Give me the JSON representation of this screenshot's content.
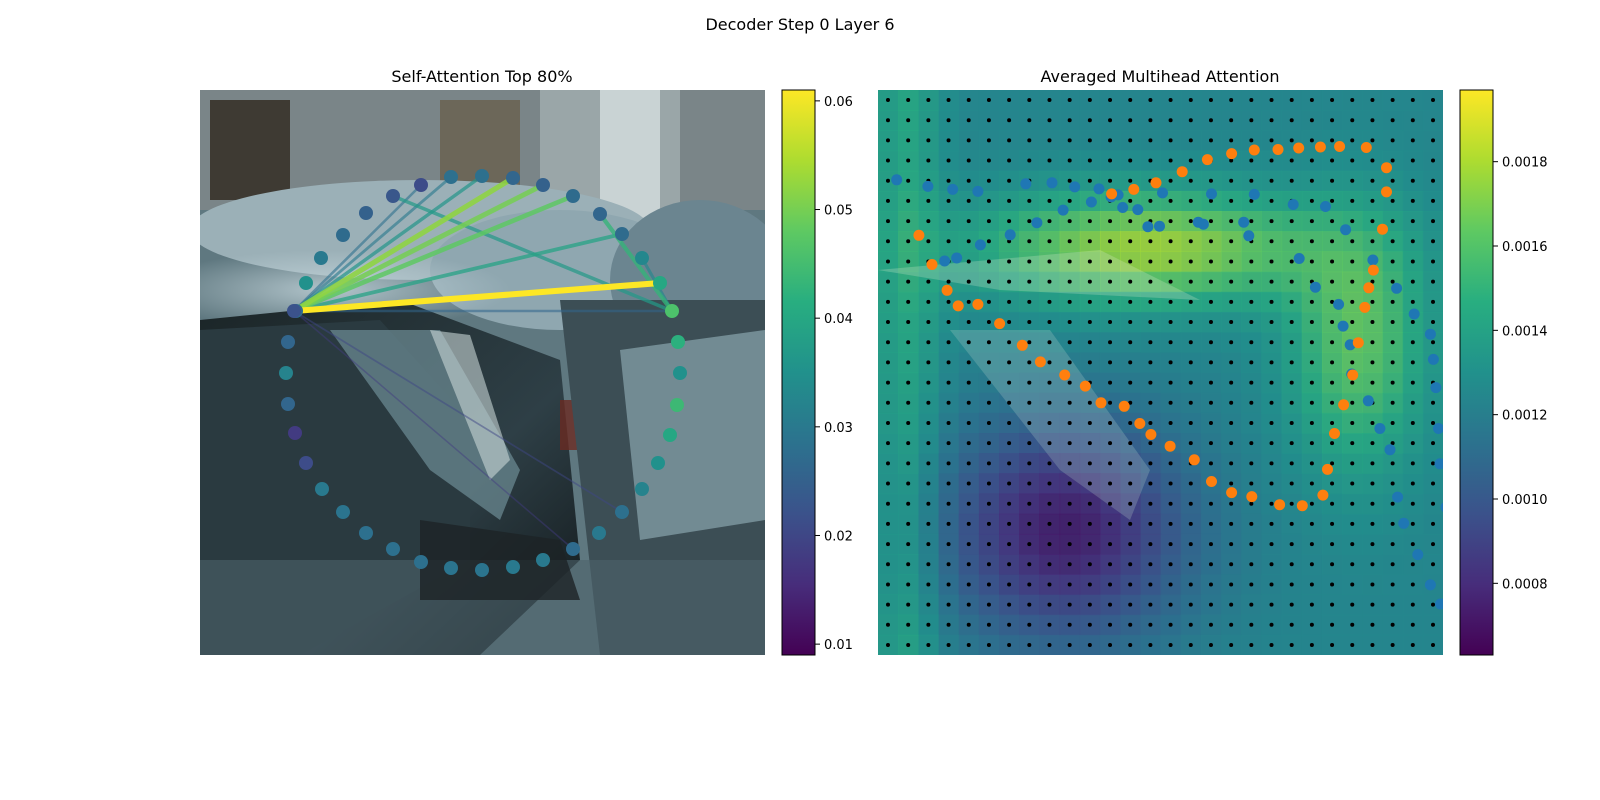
{
  "figure": {
    "suptitle": "Decoder Step 0 Layer 6"
  },
  "chart_data": [
    {
      "type": "scatter",
      "title": "Self-Attention Top 80%",
      "description_of_background": "blurred street photo of parked cars",
      "colormap": "viridis",
      "colorbar": {
        "min": 0.009,
        "max": 0.061,
        "ticks": [
          0.01,
          0.02,
          0.03,
          0.04,
          0.05,
          0.06
        ]
      },
      "points": [
        {
          "x": 3,
          "y": 5,
          "v": 0.035
        },
        {
          "x": 5.5,
          "y": 5.8,
          "v": 0.03
        },
        {
          "x": 9,
          "y": 6.5,
          "v": 0.027
        },
        {
          "x": 12.5,
          "y": 6,
          "v": 0.025
        },
        {
          "x": 15.5,
          "y": 4.8,
          "v": 0.023
        },
        {
          "x": 19,
          "y": 3.5,
          "v": 0.021
        },
        {
          "x": 24.5,
          "y": 2.3,
          "v": 0.028
        },
        {
          "x": 30,
          "y": 2,
          "v": 0.028
        },
        {
          "x": 35,
          "y": 1.8,
          "v": 0.026
        },
        {
          "x": 40,
          "y": 2,
          "v": 0.025
        },
        {
          "x": 45.5,
          "y": 2.3,
          "v": 0.027
        },
        {
          "x": 51.5,
          "y": 3,
          "v": 0.026
        },
        {
          "x": 57.5,
          "y": 3.2,
          "v": 0.027
        },
        {
          "x": 63.5,
          "y": 3.5,
          "v": 0.033
        },
        {
          "x": 68,
          "y": 4.5,
          "v": 0.04
        },
        {
          "x": 73,
          "y": 5,
          "v": 0.046
        },
        {
          "x": 78.5,
          "y": 6.2,
          "v": 0.042
        },
        {
          "x": 81.5,
          "y": 8.8,
          "v": 0.035
        },
        {
          "x": 83.5,
          "y": 11.8,
          "v": 0.044
        },
        {
          "x": 84.5,
          "y": 15.3,
          "v": 0.04
        },
        {
          "x": 84.5,
          "y": 18.5,
          "v": 0.035
        },
        {
          "x": 84,
          "y": 22,
          "v": 0.032
        },
        {
          "x": 83,
          "y": 25.3,
          "v": 0.028
        },
        {
          "x": 81.5,
          "y": 29,
          "v": 0.03
        },
        {
          "x": 78.5,
          "y": 32.8,
          "v": 0.027
        },
        {
          "x": 74.5,
          "y": 36,
          "v": 0.03
        },
        {
          "x": 71,
          "y": 39,
          "v": 0.03
        },
        {
          "x": 67,
          "y": 41.5,
          "v": 0.029
        },
        {
          "x": 62,
          "y": 43.3,
          "v": 0.029
        },
        {
          "x": 56.5,
          "y": 44,
          "v": 0.028
        },
        {
          "x": 51,
          "y": 44.3,
          "v": 0.028
        },
        {
          "x": 45.5,
          "y": 43.7,
          "v": 0.028
        },
        {
          "x": 39.5,
          "y": 42.8,
          "v": 0.029
        },
        {
          "x": 34.5,
          "y": 40.5,
          "v": 0.03
        },
        {
          "x": 29,
          "y": 37.5,
          "v": 0.021
        },
        {
          "x": 25,
          "y": 33.5,
          "v": 0.018
        },
        {
          "x": 21.5,
          "y": 31.5,
          "v": 0.026
        },
        {
          "x": 16.5,
          "y": 29.8,
          "v": 0.032
        },
        {
          "x": 14,
          "y": 28.5,
          "v": 0.026
        },
        {
          "x": 11.5,
          "y": 27.5,
          "v": 0.027
        },
        {
          "x": 8.5,
          "y": 26,
          "v": 0.022
        }
      ],
      "edges": [
        {
          "from": 40,
          "to": 6,
          "v": 0.03
        },
        {
          "from": 40,
          "to": 7,
          "v": 0.036
        },
        {
          "from": 40,
          "to": 8,
          "v": 0.052
        },
        {
          "from": 40,
          "to": 9,
          "v": 0.05
        },
        {
          "from": 40,
          "to": 10,
          "v": 0.048
        },
        {
          "from": 40,
          "to": 12,
          "v": 0.039
        },
        {
          "from": 40,
          "to": 14,
          "v": 0.061
        },
        {
          "from": 40,
          "to": 15,
          "v": 0.026
        },
        {
          "from": 40,
          "to": 5,
          "v": 0.028
        },
        {
          "from": 4,
          "to": 15,
          "v": 0.037
        },
        {
          "from": 11,
          "to": 15,
          "v": 0.043
        },
        {
          "from": 13,
          "to": 15,
          "v": 0.033
        },
        {
          "from": 40,
          "to": 22,
          "v": 0.02
        },
        {
          "from": 40,
          "to": 24,
          "v": 0.018
        }
      ]
    },
    {
      "type": "heatmap",
      "title": "Averaged Multihead Attention",
      "description_of_background": "attention heatmap overlaid on the same street photo with sampling grid and contour points",
      "colormap": "viridis",
      "colorbar": {
        "min": 0.00063,
        "max": 0.00197,
        "ticks": [
          0.0008,
          0.001,
          0.0012,
          0.0014,
          0.0016,
          0.0018
        ]
      },
      "grid": {
        "rows": 28,
        "cols": 28
      },
      "series": [
        {
          "color": "#1f77b4",
          "points": [
            [
              19.8,
              20.1
            ],
            [
              14.8,
              19.7
            ],
            [
              9.9,
              19.1
            ],
            [
              3.7,
              17.8
            ],
            [
              29.3,
              18.6
            ],
            [
              34.5,
              18.4
            ],
            [
              39,
              19.2
            ],
            [
              43.8,
              19.6
            ],
            [
              46.2,
              21.2
            ],
            [
              48.5,
              23.3
            ],
            [
              51.5,
              23.7
            ],
            [
              53.5,
              27.1
            ],
            [
              55.8,
              27
            ],
            [
              63.5,
              26.2
            ],
            [
              64.5,
              26.6
            ],
            [
              72.5,
              26.2
            ],
            [
              73.5,
              28.9
            ],
            [
              83.5,
              33.4
            ],
            [
              86.7,
              39.1
            ],
            [
              91.3,
              42.5
            ],
            [
              92.2,
              46.8
            ],
            [
              93.6,
              50.5
            ],
            [
              93.9,
              56.3
            ],
            [
              97.2,
              61.6
            ],
            [
              99.5,
              67.1
            ],
            [
              101.5,
              71.3
            ],
            [
              103,
              80.7
            ],
            [
              104.2,
              85.9
            ],
            [
              107,
              92.1
            ],
            [
              109.5,
              98.1
            ],
            [
              111.5,
              101.9
            ],
            [
              113.8,
              102.1
            ],
            [
              113.9,
              87.9
            ],
            [
              112.6,
              82.7
            ],
            [
              111.4,
              74.1
            ],
            [
              111.1,
              67.1
            ],
            [
              110.6,
              59
            ],
            [
              110.1,
              53.4
            ],
            [
              109.5,
              48.4
            ],
            [
              106.3,
              44.4
            ],
            [
              102.8,
              39.3
            ],
            [
              98.1,
              33.7
            ],
            [
              92.7,
              27.7
            ],
            [
              88.7,
              23.1
            ],
            [
              82.3,
              22.7
            ],
            [
              74.6,
              20.7
            ],
            [
              66.1,
              20.6
            ],
            [
              56.4,
              20.4
            ],
            [
              47.6,
              20.8
            ],
            [
              42.3,
              22.2
            ],
            [
              36.7,
              23.8
            ],
            [
              31.5,
              26.3
            ],
            [
              26.2,
              28.7
            ],
            [
              20.3,
              30.7
            ],
            [
              15.6,
              33.3
            ],
            [
              13.2,
              33.9
            ]
          ]
        },
        {
          "color": "#ff7f0e",
          "points": [
            [
              8.1,
              28.8
            ],
            [
              10.7,
              34.6
            ],
            [
              13.7,
              39.7
            ],
            [
              15.9,
              42.8
            ],
            [
              19.8,
              42.5
            ],
            [
              24.1,
              46.3
            ],
            [
              28.6,
              50.6
            ],
            [
              32.2,
              53.9
            ],
            [
              37,
              56.5
            ],
            [
              41.1,
              58.7
            ],
            [
              44.2,
              62
            ],
            [
              48.8,
              62.7
            ],
            [
              51.9,
              66.1
            ],
            [
              54.1,
              68.3
            ],
            [
              57.9,
              70.6
            ],
            [
              62.7,
              73.3
            ],
            [
              66.1,
              77.6
            ],
            [
              70.1,
              79.8
            ],
            [
              74.1,
              80.6
            ],
            [
              79.6,
              82.2
            ],
            [
              84.1,
              82.4
            ],
            [
              88.2,
              80.3
            ],
            [
              89.1,
              75.2
            ],
            [
              90.5,
              68.1
            ],
            [
              92.3,
              62.4
            ],
            [
              94.1,
              56.5
            ],
            [
              95.2,
              50.1
            ],
            [
              96.5,
              43.1
            ],
            [
              97.3,
              39.2
            ],
            [
              98.2,
              35.7
            ],
            [
              100,
              27.6
            ],
            [
              100.8,
              20.2
            ],
            [
              100.8,
              15.4
            ],
            [
              96.8,
              11.4
            ],
            [
              91.5,
              11.2
            ],
            [
              87.7,
              11.3
            ],
            [
              83.4,
              11.5
            ],
            [
              79.3,
              11.8
            ],
            [
              74.6,
              11.9
            ],
            [
              70.1,
              12.6
            ],
            [
              65.3,
              13.8
            ],
            [
              60.3,
              16.2
            ],
            [
              55.1,
              18.4
            ],
            [
              50.7,
              19.7
            ],
            [
              46.3,
              20.6
            ]
          ]
        }
      ]
    }
  ]
}
